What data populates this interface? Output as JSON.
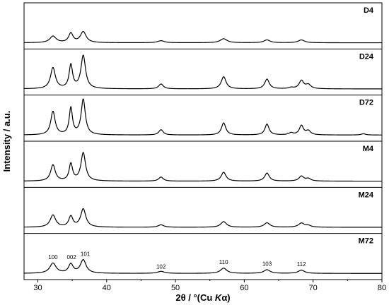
{
  "chart_data": {
    "type": "line",
    "layout": "stacked-panels",
    "xlabel": "2θ / °(Cu Kα)",
    "xlabel_parts": {
      "pre": "2θ / °(Cu ",
      "italic": "K",
      "post": "α)"
    },
    "ylabel": "Intensity / a.u.",
    "xlim": [
      28,
      80
    ],
    "xticks": [
      30,
      40,
      50,
      60,
      70,
      80
    ],
    "peak_positions": [
      32.2,
      34.8,
      36.6,
      47.9,
      57.0,
      63.3,
      68.3
    ],
    "series": [
      {
        "name": "D4",
        "baseline": 0.1,
        "peaks": [
          {
            "x": 32.2,
            "h": 0.16,
            "w": 0.55
          },
          {
            "x": 34.8,
            "h": 0.23,
            "w": 0.38
          },
          {
            "x": 36.6,
            "h": 0.27,
            "w": 0.5
          },
          {
            "x": 47.9,
            "h": 0.05,
            "w": 0.6
          },
          {
            "x": 57.0,
            "h": 0.1,
            "w": 0.6
          },
          {
            "x": 63.3,
            "h": 0.07,
            "w": 0.55
          },
          {
            "x": 68.3,
            "h": 0.07,
            "w": 0.55
          }
        ]
      },
      {
        "name": "D24",
        "baseline": 0.1,
        "peaks": [
          {
            "x": 32.2,
            "h": 0.52,
            "w": 0.42
          },
          {
            "x": 34.8,
            "h": 0.58,
            "w": 0.3
          },
          {
            "x": 36.6,
            "h": 0.82,
            "w": 0.4
          },
          {
            "x": 47.9,
            "h": 0.12,
            "w": 0.4
          },
          {
            "x": 57.0,
            "h": 0.3,
            "w": 0.42
          },
          {
            "x": 63.3,
            "h": 0.24,
            "w": 0.4
          },
          {
            "x": 66.8,
            "h": 0.03,
            "w": 0.4
          },
          {
            "x": 68.3,
            "h": 0.2,
            "w": 0.4
          },
          {
            "x": 69.3,
            "h": 0.1,
            "w": 0.45
          }
        ]
      },
      {
        "name": "D72",
        "baseline": 0.1,
        "peaks": [
          {
            "x": 32.2,
            "h": 0.58,
            "w": 0.38
          },
          {
            "x": 34.8,
            "h": 0.66,
            "w": 0.28
          },
          {
            "x": 36.6,
            "h": 0.88,
            "w": 0.36
          },
          {
            "x": 47.9,
            "h": 0.13,
            "w": 0.38
          },
          {
            "x": 57.0,
            "h": 0.3,
            "w": 0.38
          },
          {
            "x": 63.3,
            "h": 0.27,
            "w": 0.36
          },
          {
            "x": 66.8,
            "h": 0.05,
            "w": 0.38
          },
          {
            "x": 68.3,
            "h": 0.23,
            "w": 0.36
          },
          {
            "x": 69.3,
            "h": 0.1,
            "w": 0.4
          },
          {
            "x": 77.3,
            "h": 0.03,
            "w": 0.4
          }
        ]
      },
      {
        "name": "M4",
        "baseline": 0.1,
        "peaks": [
          {
            "x": 32.2,
            "h": 0.4,
            "w": 0.4
          },
          {
            "x": 34.8,
            "h": 0.42,
            "w": 0.3
          },
          {
            "x": 36.6,
            "h": 0.7,
            "w": 0.4
          },
          {
            "x": 47.9,
            "h": 0.1,
            "w": 0.4
          },
          {
            "x": 57.0,
            "h": 0.22,
            "w": 0.42
          },
          {
            "x": 63.3,
            "h": 0.2,
            "w": 0.4
          },
          {
            "x": 68.3,
            "h": 0.12,
            "w": 0.42
          },
          {
            "x": 69.3,
            "h": 0.06,
            "w": 0.45
          }
        ]
      },
      {
        "name": "M24",
        "baseline": 0.1,
        "peaks": [
          {
            "x": 32.2,
            "h": 0.3,
            "w": 0.48
          },
          {
            "x": 34.8,
            "h": 0.26,
            "w": 0.36
          },
          {
            "x": 36.6,
            "h": 0.45,
            "w": 0.45
          },
          {
            "x": 47.9,
            "h": 0.06,
            "w": 0.5
          },
          {
            "x": 57.0,
            "h": 0.14,
            "w": 0.5
          },
          {
            "x": 63.3,
            "h": 0.11,
            "w": 0.5
          },
          {
            "x": 68.3,
            "h": 0.1,
            "w": 0.5
          },
          {
            "x": 69.3,
            "h": 0.04,
            "w": 0.5
          }
        ]
      },
      {
        "name": "M72",
        "baseline": 0.1,
        "peaks": [
          {
            "x": 32.2,
            "h": 0.25,
            "w": 0.55
          },
          {
            "x": 34.8,
            "h": 0.22,
            "w": 0.4
          },
          {
            "x": 36.6,
            "h": 0.33,
            "w": 0.5
          },
          {
            "x": 47.9,
            "h": 0.05,
            "w": 0.6
          },
          {
            "x": 57.0,
            "h": 0.13,
            "w": 0.55
          },
          {
            "x": 63.3,
            "h": 0.09,
            "w": 0.55
          },
          {
            "x": 68.3,
            "h": 0.08,
            "w": 0.55
          }
        ]
      }
    ],
    "annotations": [
      {
        "panel": "M72",
        "x": 32.2,
        "y": 0.45,
        "text": "100"
      },
      {
        "panel": "M72",
        "x": 34.9,
        "y": 0.45,
        "text": "002"
      },
      {
        "panel": "M72",
        "x": 36.9,
        "y": 0.53,
        "text": "101"
      },
      {
        "panel": "M72",
        "x": 47.9,
        "y": 0.22,
        "text": "102"
      },
      {
        "panel": "M72",
        "x": 57.0,
        "y": 0.33,
        "text": "110"
      },
      {
        "panel": "M72",
        "x": 63.3,
        "y": 0.29,
        "text": "103"
      },
      {
        "panel": "M72",
        "x": 68.3,
        "y": 0.28,
        "text": "112"
      }
    ],
    "grid": false,
    "legend": "panel-labels-top-right",
    "line_color": "#000000"
  }
}
